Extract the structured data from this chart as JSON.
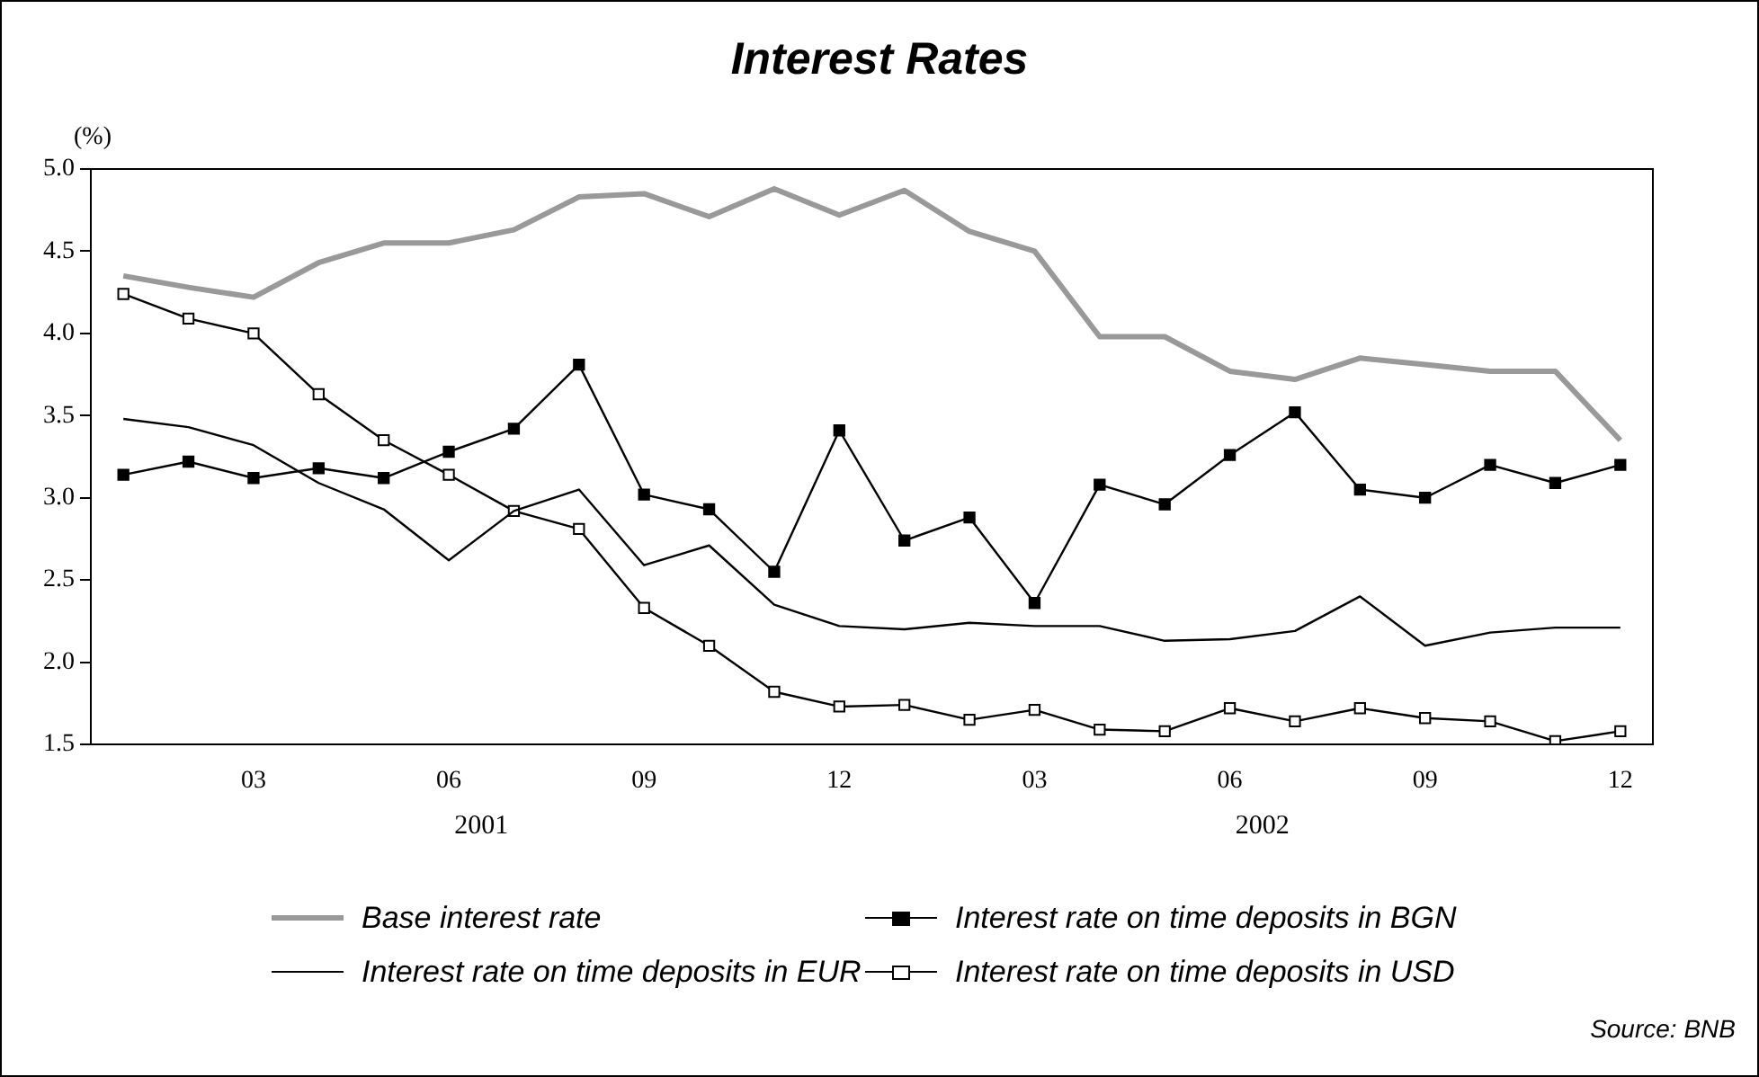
{
  "chart_data": {
    "type": "line",
    "title": "Interest Rates",
    "ylabel": "(%)",
    "categories": [
      null,
      null,
      "03",
      null,
      null,
      "06",
      null,
      null,
      "09",
      null,
      null,
      "12",
      null,
      null,
      "03",
      null,
      null,
      "06",
      null,
      null,
      "09",
      null,
      null,
      "12"
    ],
    "ylim": [
      1.5,
      5.0
    ],
    "yticks": [
      1.5,
      {
        "value": 2,
        "label": "2.0"
      },
      2.5,
      {
        "value": 3,
        "label": "3.0"
      },
      3.5,
      {
        "value": 4,
        "label": "4.0"
      },
      4.5,
      {
        "value": 5,
        "label": "5.0"
      }
    ],
    "grid": false,
    "legend": "bottom",
    "line_style": "solid",
    "series": [
      {
        "name": "Base interest rate",
        "color": "#999999",
        "marker": "none",
        "values": [
          4.35,
          4.28,
          4.22,
          4.43,
          4.55,
          4.55,
          4.63,
          4.83,
          4.85,
          4.71,
          4.88,
          4.72,
          4.87,
          4.62,
          4.5,
          3.98,
          3.98,
          3.77,
          3.72,
          3.85,
          3.81,
          3.77,
          3.77,
          3.35
        ]
      },
      {
        "name": "Interest rate on time deposits in BGN",
        "color": "#000000",
        "marker": "square",
        "values": [
          3.14,
          3.22,
          3.12,
          3.18,
          3.12,
          3.28,
          3.42,
          3.81,
          3.02,
          2.93,
          2.55,
          3.41,
          2.74,
          2.88,
          2.36,
          3.08,
          2.96,
          3.26,
          3.52,
          3.05,
          3.0,
          3.2,
          3.09,
          3.2
        ]
      },
      {
        "name": "Interest rate on time deposits in EUR",
        "color": "#000000",
        "marker": "none",
        "values": [
          3.48,
          3.43,
          3.32,
          3.09,
          2.93,
          2.62,
          2.92,
          3.05,
          2.59,
          2.71,
          2.35,
          2.22,
          2.2,
          2.24,
          2.22,
          2.22,
          2.13,
          2.14,
          2.19,
          2.4,
          2.1,
          2.18,
          2.21,
          2.21
        ]
      },
      {
        "name": "Interest rate on time deposits in USD",
        "color": "#000000",
        "marker": "square",
        "values": [
          4.24,
          4.09,
          4.0,
          3.63,
          3.35,
          3.14,
          2.92,
          2.81,
          2.33,
          2.1,
          1.82,
          1.73,
          1.74,
          1.65,
          1.71,
          1.59,
          1.58,
          1.72,
          1.64,
          1.72,
          1.66,
          1.64,
          1.52,
          1.58
        ]
      }
    ],
    "annotations": [
      "2001",
      "2002",
      "Source: BNB"
    ]
  }
}
